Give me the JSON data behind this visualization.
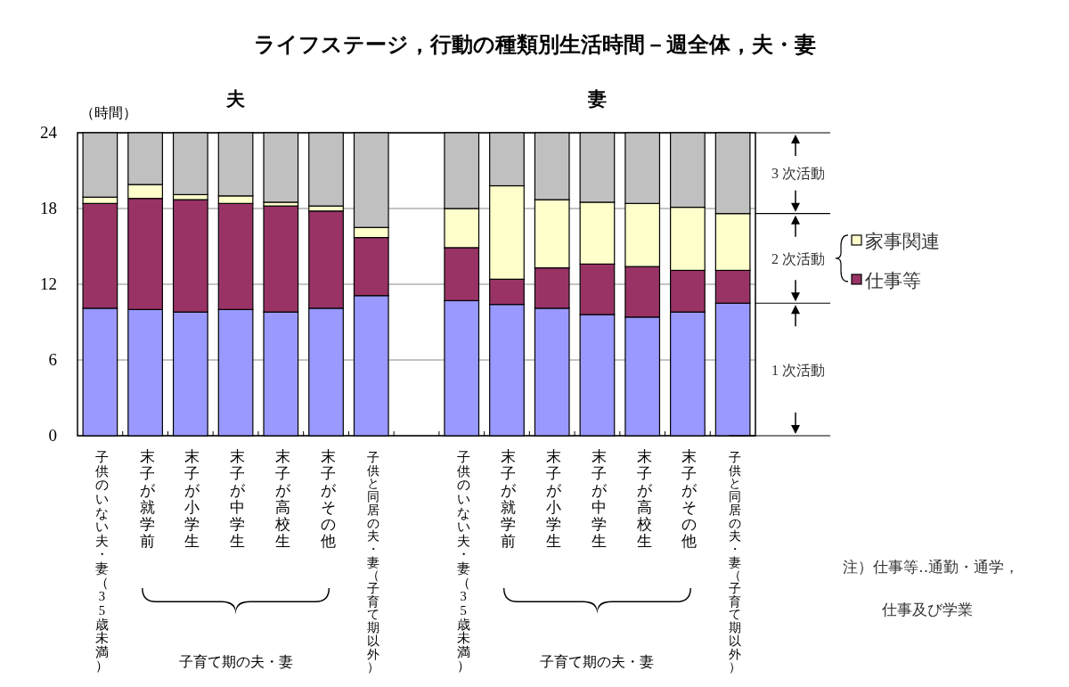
{
  "chart_data": {
    "type": "bar",
    "title": "ライフステージ，行動の種類別生活時間－週全体，夫・妻",
    "ylabel": "（時間）",
    "categories": [
      "子供のいない夫・妻（35歳未満）",
      "末子が就学前",
      "末子が小学生",
      "末子が中学生",
      "末子が高校生",
      "末子がその他",
      "子供と同居の夫・妻（子育て期以外）",
      null,
      "子供のいない夫・妻（35歳未満）",
      "末子が就学前",
      "末子が小学生",
      "末子が中学生",
      "末子が高校生",
      "末子がその他",
      "子供と同居の夫・妻（子育て期以外）"
    ],
    "stacked": true,
    "series": [
      {
        "name": "1 次活動",
        "color": "#9999ff",
        "values": [
          10.1,
          10.0,
          9.8,
          10.0,
          9.8,
          10.1,
          11.1,
          null,
          10.7,
          10.4,
          10.1,
          9.6,
          9.4,
          9.8,
          10.5
        ]
      },
      {
        "name": "仕事等",
        "color": "#993366",
        "values": [
          8.3,
          8.8,
          8.9,
          8.4,
          8.4,
          7.7,
          4.6,
          null,
          4.2,
          2.0,
          3.2,
          4.0,
          4.0,
          3.3,
          2.6
        ]
      },
      {
        "name": "家事関連",
        "color": "#ffffcc",
        "values": [
          0.5,
          1.1,
          0.4,
          0.6,
          0.3,
          0.4,
          0.8,
          null,
          3.1,
          7.4,
          5.4,
          4.9,
          5.0,
          5.0,
          4.5
        ]
      },
      {
        "name": "3 次活動",
        "color": "#c0c0c0",
        "values": [
          5.1,
          4.1,
          4.9,
          5.0,
          5.5,
          5.8,
          7.5,
          null,
          6.0,
          4.2,
          5.3,
          5.5,
          5.6,
          5.9,
          6.4
        ]
      }
    ],
    "ylim": [
      0,
      24
    ],
    "yticks": [
      0,
      6,
      12,
      18,
      24
    ],
    "grid": "y",
    "legend": "right",
    "annotations": [
      "夫",
      "妻",
      "2 次活動",
      "子育て期の夫・妻",
      "子育て期の夫・妻",
      "注）仕事等‥通勤・通学，仕事及び学業"
    ]
  }
}
